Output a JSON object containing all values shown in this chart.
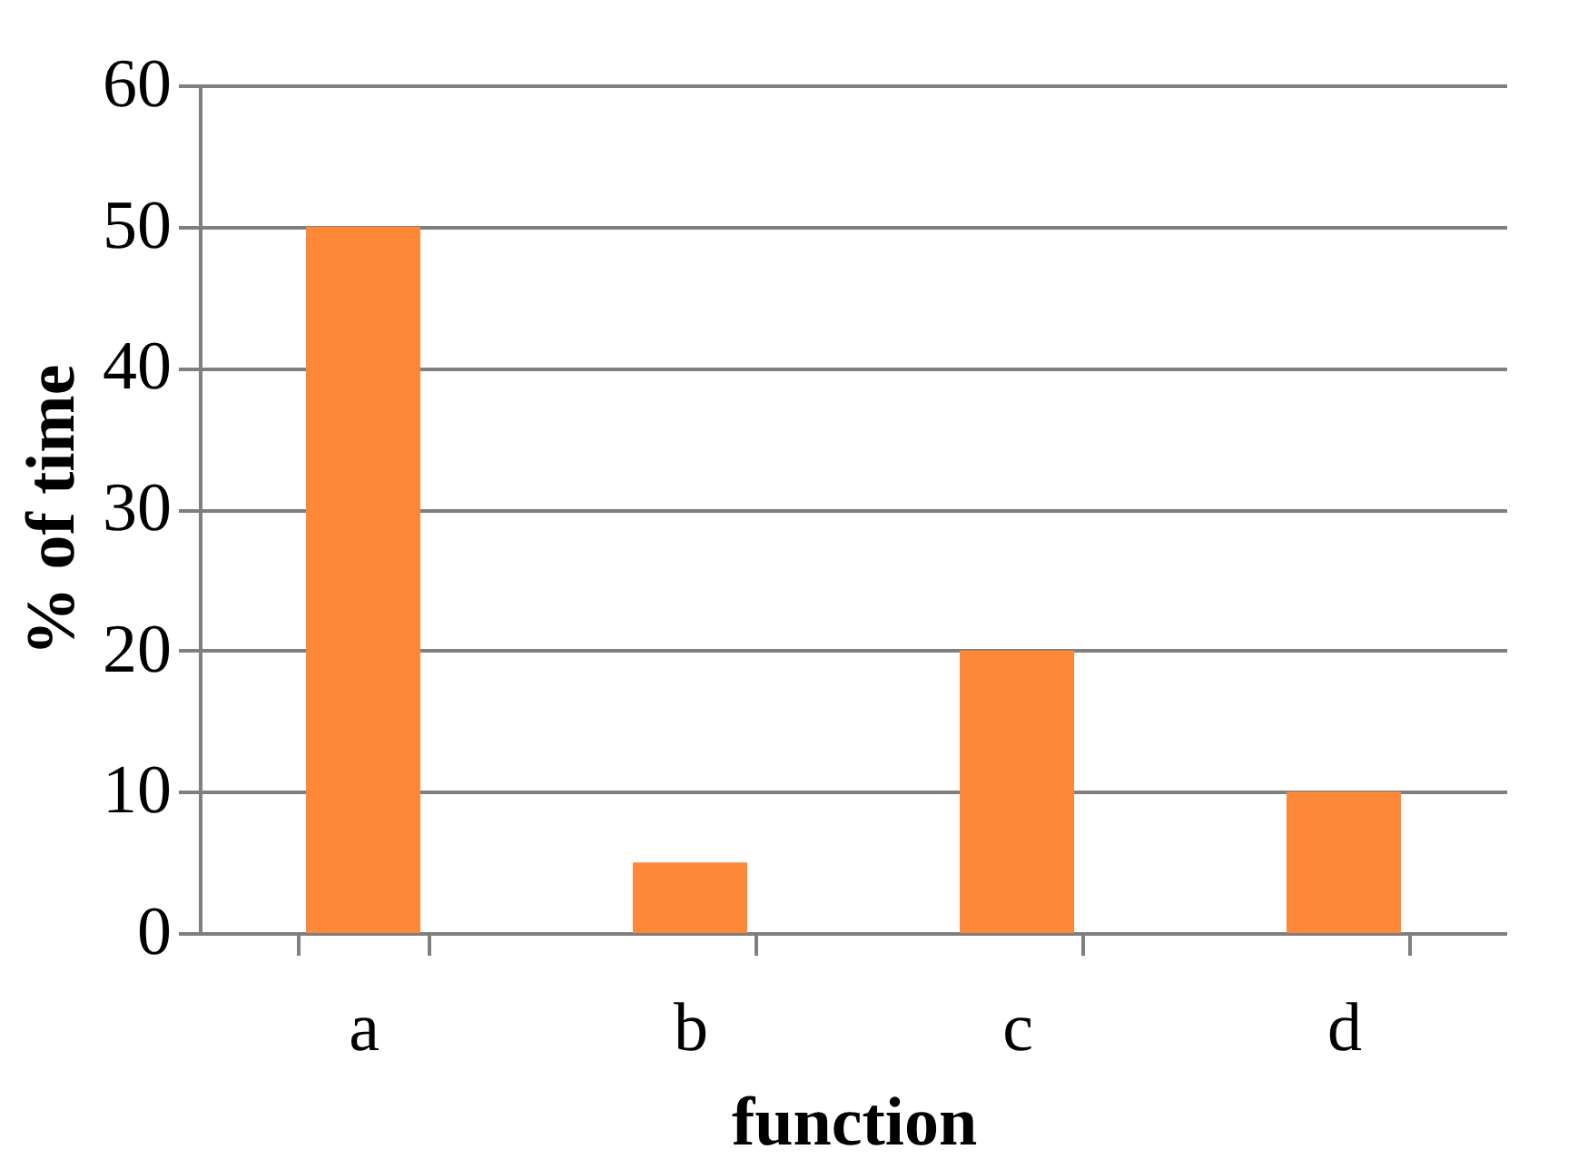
{
  "chart_data": {
    "type": "bar",
    "xlabel": "function",
    "ylabel": "% of time",
    "categories": [
      "a",
      "b",
      "c",
      "d"
    ],
    "values": [
      50,
      5,
      20,
      10
    ],
    "color": "#fd8838",
    "ylim": [
      0,
      60
    ],
    "yticks": [
      0,
      10,
      20,
      30,
      40,
      50,
      60
    ],
    "grid": "y",
    "legend": false
  }
}
